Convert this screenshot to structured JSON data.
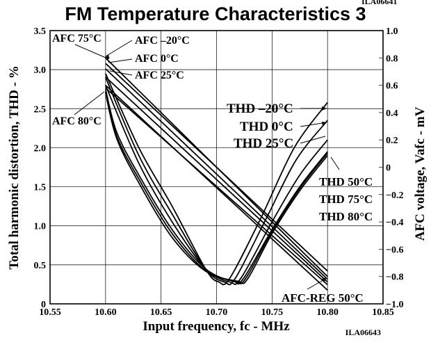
{
  "header": {
    "title": "FM Temperature Characteristics 3",
    "code_top": "ILA06641",
    "code_bottom": "ILA06643"
  },
  "chart_data": {
    "type": "line",
    "title": "FM Temperature Characteristics 3",
    "xlabel": "Input frequency, fc - MHz",
    "ylabel": "Total harmonic distortion, THD - %",
    "y2label": "AFC voltage, Vafc - mV",
    "xlim": [
      10.55,
      10.85
    ],
    "ylim": [
      0,
      3.5
    ],
    "y2lim": [
      -1.0,
      1.0
    ],
    "grid": true,
    "x_ticks": [
      "10.55",
      "10.60",
      "10.65",
      "10.70",
      "10.75",
      "10.80",
      "10.85"
    ],
    "y_ticks": [
      "0",
      "0.5",
      "1.0",
      "1.5",
      "2.0",
      "2.5",
      "3.0",
      "3.5"
    ],
    "y2_ticks": [
      "−1.0",
      "−0.8",
      "−0.6",
      "−0.4",
      "−0.2",
      "0",
      "0.2",
      "0.4",
      "0.6",
      "0.8",
      "1.0"
    ],
    "series": [
      {
        "name": "AFC 75°C",
        "axis": "right",
        "x": [
          10.6,
          10.8
        ],
        "y": [
          0.76,
          -0.76
        ]
      },
      {
        "name": "AFC −20°C",
        "axis": "right",
        "x": [
          10.6,
          10.8
        ],
        "y": [
          0.8,
          -0.8
        ]
      },
      {
        "name": "AFC 0°C",
        "axis": "right",
        "x": [
          10.6,
          10.8
        ],
        "y": [
          0.72,
          -0.82
        ]
      },
      {
        "name": "AFC 25°C",
        "axis": "right",
        "x": [
          10.6,
          10.8
        ],
        "y": [
          0.66,
          -0.84
        ]
      },
      {
        "name": "AFC 80°C",
        "axis": "right",
        "x": [
          10.6,
          10.8
        ],
        "y": [
          0.58,
          -0.86
        ]
      },
      {
        "name": "AFC-REG 50°C",
        "axis": "right",
        "x": [
          10.6,
          10.8
        ],
        "y": [
          0.6,
          -0.9
        ]
      },
      {
        "name": "THD −20°C",
        "axis": "left",
        "x": [
          10.6,
          10.63,
          10.66,
          10.69,
          10.702,
          10.712,
          10.74,
          10.77,
          10.8
        ],
        "y": [
          2.95,
          2.0,
          1.25,
          0.45,
          0.28,
          0.33,
          1.1,
          2.0,
          2.58
        ]
      },
      {
        "name": "THD 0°C",
        "axis": "left",
        "x": [
          10.6,
          10.63,
          10.66,
          10.69,
          10.707,
          10.717,
          10.745,
          10.772,
          10.8
        ],
        "y": [
          2.9,
          1.9,
          1.15,
          0.45,
          0.28,
          0.33,
          1.1,
          1.85,
          2.35
        ]
      },
      {
        "name": "THD 25°C",
        "axis": "left",
        "x": [
          10.6,
          10.63,
          10.66,
          10.69,
          10.712,
          10.722,
          10.75,
          10.775,
          10.8
        ],
        "y": [
          2.8,
          1.8,
          1.05,
          0.45,
          0.28,
          0.33,
          1.05,
          1.65,
          2.1
        ]
      },
      {
        "name": "THD 50°C",
        "axis": "left",
        "x": [
          10.6,
          10.61,
          10.63,
          10.66,
          10.69,
          10.715,
          10.724,
          10.75,
          10.775,
          10.8
        ],
        "y": [
          2.75,
          2.2,
          1.65,
          0.95,
          0.45,
          0.29,
          0.32,
          0.95,
          1.5,
          1.95
        ]
      },
      {
        "name": "THD 75°C",
        "axis": "left",
        "x": [
          10.6,
          10.61,
          10.63,
          10.66,
          10.69,
          10.717,
          10.726,
          10.75,
          10.775,
          10.8
        ],
        "y": [
          2.72,
          2.15,
          1.6,
          0.9,
          0.43,
          0.29,
          0.32,
          0.93,
          1.48,
          1.93
        ]
      },
      {
        "name": "THD 80°C",
        "axis": "left",
        "x": [
          10.6,
          10.61,
          10.63,
          10.66,
          10.69,
          10.719,
          10.728,
          10.75,
          10.775,
          10.8
        ],
        "y": [
          2.7,
          2.12,
          1.55,
          0.85,
          0.42,
          0.29,
          0.32,
          0.9,
          1.45,
          1.9
        ]
      }
    ],
    "annotations": [
      "AFC 75°C",
      "AFC –20°C",
      "AFC 0°C",
      "AFC 25°C",
      "AFC 80°C",
      "THD –20°C",
      "THD 0°C",
      "THD 25°C",
      "THD 50°C",
      "THD 75°C",
      "THD 80°C",
      "AFC-REG 50°C"
    ]
  }
}
